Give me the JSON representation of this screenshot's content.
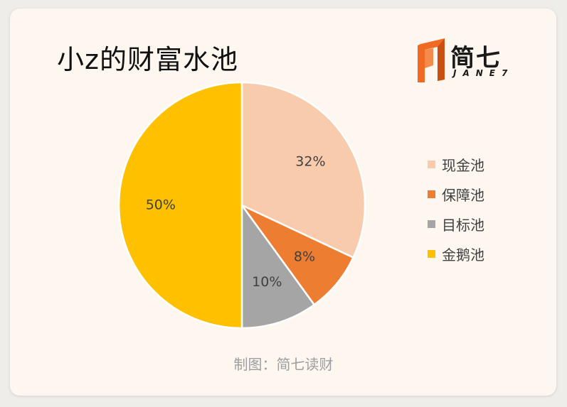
{
  "title": "小z的财富水池",
  "logo": {
    "name_cn": "简七",
    "name_en": "JANE7",
    "colors": {
      "primary": "#f26a21",
      "dark": "#c94f12"
    }
  },
  "credit": "制图：简七读财",
  "chart_data": {
    "type": "pie",
    "title": "小z的财富水池",
    "legend_position": "right",
    "series": [
      {
        "name": "现金池",
        "value": 32,
        "label": "32%",
        "color": "#f8cbad"
      },
      {
        "name": "保障池",
        "value": 8,
        "label": "8%",
        "color": "#ed7d31"
      },
      {
        "name": "目标池",
        "value": 10,
        "label": "10%",
        "color": "#a5a5a5"
      },
      {
        "name": "金鹅池",
        "value": 50,
        "label": "50%",
        "color": "#ffc000"
      }
    ]
  }
}
